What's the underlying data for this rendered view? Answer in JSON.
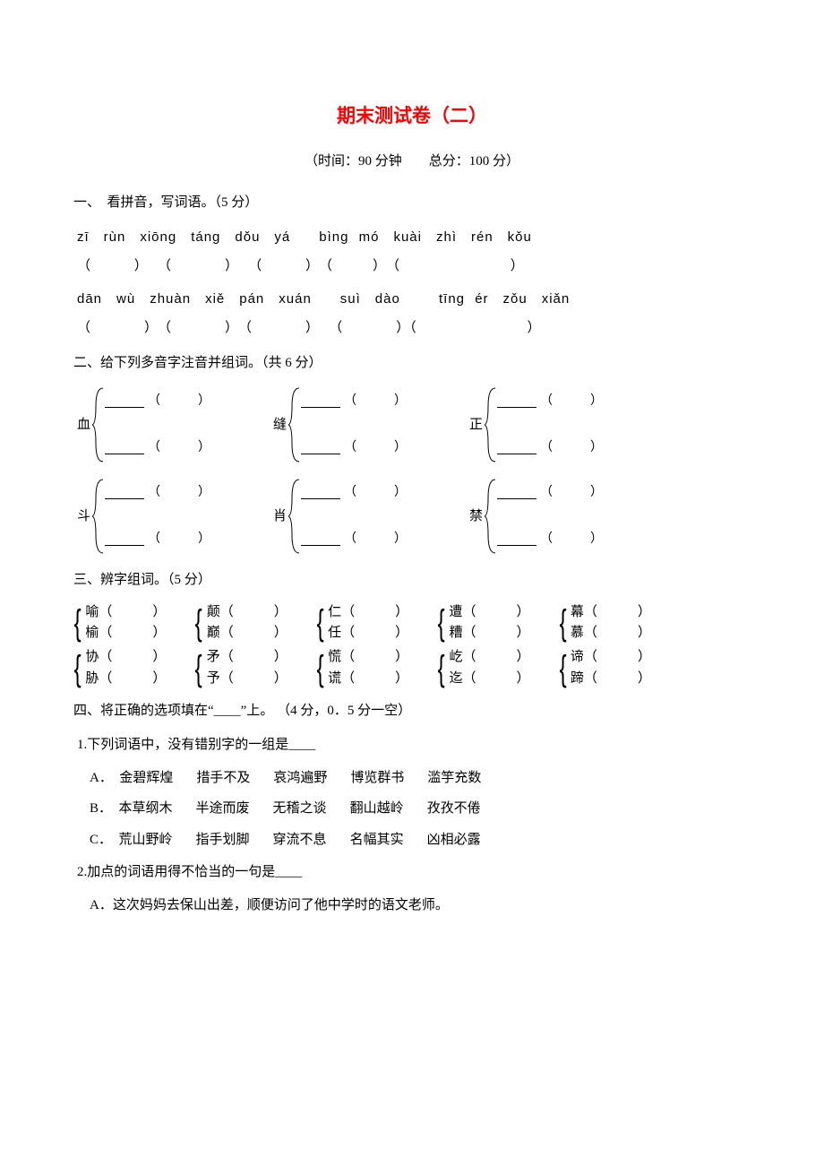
{
  "colors": {
    "title": "#ff0000",
    "text": "#000000",
    "bg": "#ffffff"
  },
  "title": "期末测试卷（二）",
  "subtitle": "（时间：90 分钟　　总分：100 分）",
  "s1": {
    "head": "一、　看拼音，写词语。（5 分）",
    "pinyin1": "zī　rùn　xiōng　táng　dǒu　yá　　bìng mó　kuài　zhì　rén　kǒu",
    "paren1": "（　　　 ）　 （　　　　）　 （ 　　　）　（　　　）　（　　　　　　　　 ）",
    "pinyin2": "dān　wù　zhuàn　xiě　pán　xuán　　suì　dào　　 tīng ér　zǒu　xiǎn",
    "paren2": "（　　　　）　（　　　　）　（　　　　） 　（　　　　）（　　　　　　　　 ）"
  },
  "s2": {
    "head": "二、给下列多音字注音并组词。（共 6 分）",
    "row1": [
      "血",
      "缝",
      "正"
    ],
    "row2": [
      "斗",
      "肖",
      "禁"
    ]
  },
  "s3": {
    "head": "三、辨字组词。（5 分）",
    "row1": [
      [
        "喻",
        "榆"
      ],
      [
        "颠",
        "巅"
      ],
      [
        "仁",
        "任"
      ],
      [
        "遭",
        "糟"
      ],
      [
        "幕",
        "慕"
      ]
    ],
    "row2": [
      [
        "协",
        "胁"
      ],
      [
        "矛",
        "予"
      ],
      [
        "慌",
        "谎"
      ],
      [
        "屹",
        "迄"
      ],
      [
        "谛",
        "蹄"
      ]
    ]
  },
  "s4": {
    "head": "四、将正确的选项填在“____”上。 （4 分，0．5 分一空）",
    "q1": "1.下列词语中，没有错别字的一组是____",
    "q1opts": [
      {
        "k": "A．",
        "w": [
          "金碧辉煌",
          "措手不及",
          "哀鸿遍野",
          "博览群书",
          "滥竽充数"
        ]
      },
      {
        "k": "B．",
        "w": [
          "本草纲木",
          "半途而废",
          "无稽之谈",
          "翻山越岭",
          "孜孜不倦"
        ]
      },
      {
        "k": "C．",
        "w": [
          "荒山野岭",
          "指手划脚",
          "穿流不息",
          "名幅其实",
          "凶相必露"
        ]
      }
    ],
    "q2": "2.加点的词语用得不恰当的一句是____",
    "q2a": "A．这次妈妈去保山出差，顺便访问了他中学时的语文老师。"
  }
}
